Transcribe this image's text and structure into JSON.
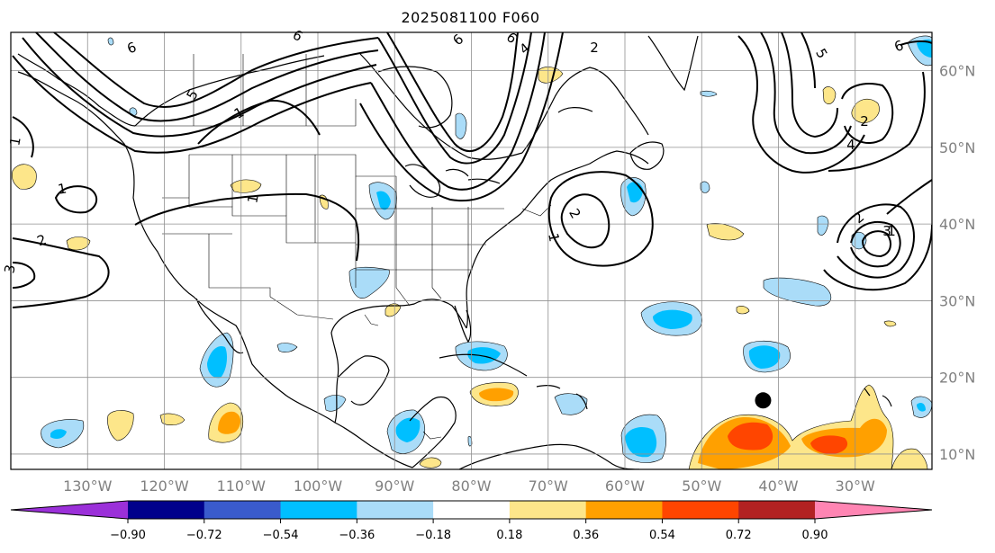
{
  "title": "2025081100 F060",
  "map": {
    "projection": "Plate Carree",
    "lon_range": [
      -140,
      -20
    ],
    "lat_range": [
      8,
      65
    ],
    "lon_labels": [
      "130°W",
      "120°W",
      "110°W",
      "100°W",
      "90°W",
      "80°W",
      "70°W",
      "60°W",
      "50°W",
      "40°W",
      "30°W"
    ],
    "lat_labels": [
      "60°N",
      "50°N",
      "40°N",
      "30°N",
      "20°N",
      "10°N"
    ],
    "gridlines": true,
    "contour_labels": [
      "6",
      "6",
      "5",
      "1",
      "6",
      "6",
      "4",
      "2",
      "2",
      "1",
      "1",
      "1",
      "1",
      "2",
      "3",
      "1",
      "2",
      "6",
      "5",
      "4",
      "3",
      "2",
      "1"
    ],
    "marker": {
      "lon": -42,
      "lat": 17,
      "shape": "circle",
      "color": "#000000"
    }
  },
  "colorbar": {
    "orientation": "horizontal",
    "extend": "both",
    "colors": [
      "#9b30d9",
      "#00008b",
      "#3a5bcc",
      "#00bfff",
      "#aadcf8",
      "#ffffff",
      "#fde68a",
      "#ffa000",
      "#ff4500",
      "#b22222",
      "#ff85b3"
    ],
    "tick_labels": [
      "−0.90",
      "−0.72",
      "−0.54",
      "−0.36",
      "−0.18",
      "0.18",
      "0.36",
      "0.54",
      "0.72",
      "0.90"
    ]
  }
}
